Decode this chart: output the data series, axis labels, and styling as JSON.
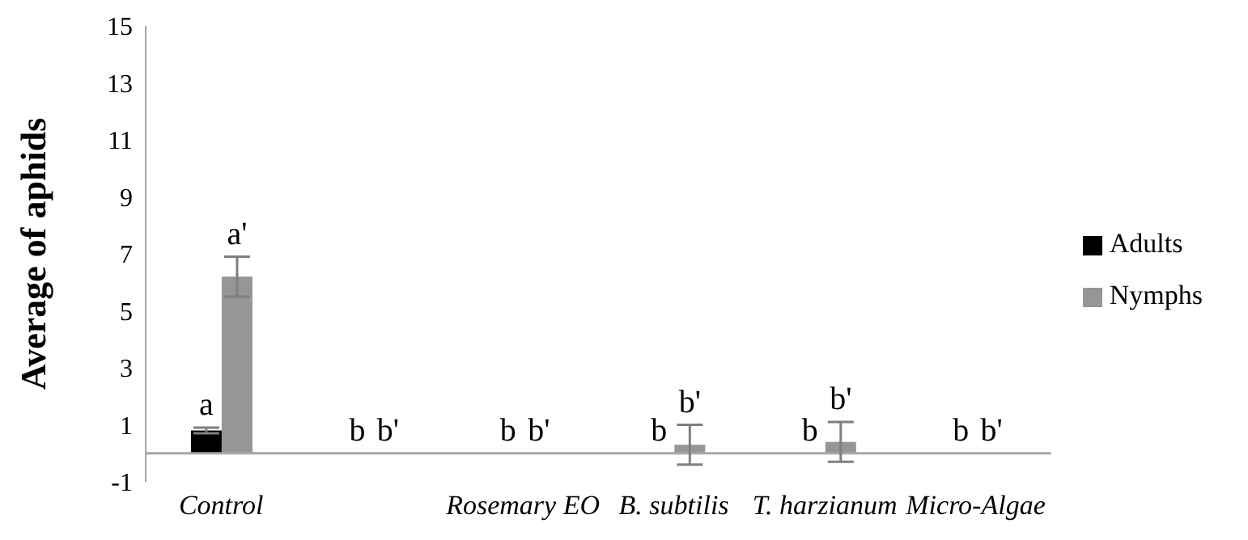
{
  "chart_data": {
    "type": "bar",
    "ylabel": "Average of aphids",
    "categories": [
      "Control",
      null,
      "Rosemary EO",
      "B. subtilis",
      "T. harzianum",
      "Micro-Algae"
    ],
    "series": [
      {
        "name": "Adults",
        "color": "#000000",
        "values": [
          0.8,
          0,
          0,
          0,
          0,
          0
        ],
        "errors": [
          0.1,
          null,
          null,
          null,
          null,
          null
        ],
        "value_labels": [
          "a",
          "b",
          "b",
          "b",
          "b",
          "b"
        ]
      },
      {
        "name": "Nymphs",
        "color": "#969696",
        "values": [
          6.2,
          0,
          0,
          0.3,
          0.4,
          0
        ],
        "errors": [
          0.7,
          null,
          null,
          0.7,
          0.7,
          null
        ],
        "value_labels": [
          "a'",
          "b'",
          "b'",
          "b'",
          "b'",
          "b'"
        ]
      }
    ],
    "ylim": [
      -1,
      15
    ],
    "yticks": [
      -1,
      1,
      3,
      5,
      7,
      9,
      11,
      13,
      15
    ],
    "grid": false,
    "legend": "right"
  }
}
